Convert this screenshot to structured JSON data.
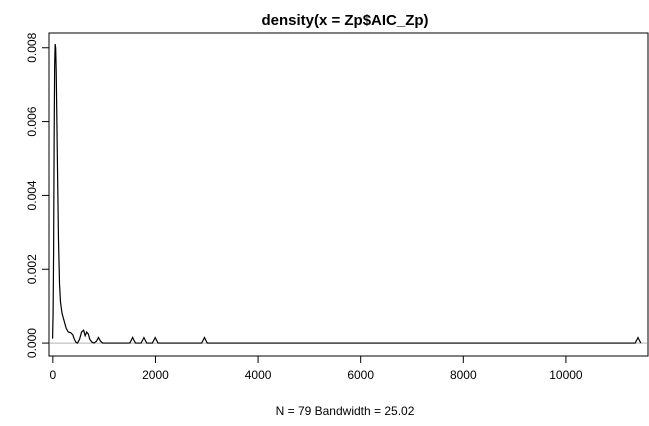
{
  "chart_data": {
    "type": "line",
    "title": "density(x = Zp$AIC_Zp)",
    "xlabel": "N = 79   Bandwidth = 25.02",
    "ylabel": "",
    "xlim": [
      -75,
      11600
    ],
    "ylim": [
      -0.00035,
      0.0084
    ],
    "x_ticks": [
      0,
      2000,
      4000,
      6000,
      8000,
      10000
    ],
    "x_tick_labels": [
      "0",
      "2000",
      "4000",
      "6000",
      "8000",
      "10000"
    ],
    "y_ticks": [
      0.0,
      0.002,
      0.004,
      0.006,
      0.008
    ],
    "y_tick_labels": [
      "0.000",
      "0.002",
      "0.004",
      "0.006",
      "0.008"
    ],
    "baseline": 0,
    "grid": false,
    "series": [
      {
        "points": [
          [
            -5,
            0.00012
          ],
          [
            5,
            0.0008
          ],
          [
            15,
            0.0025
          ],
          [
            25,
            0.0055
          ],
          [
            35,
            0.0075
          ],
          [
            45,
            0.0081
          ],
          [
            55,
            0.008
          ],
          [
            65,
            0.0074
          ],
          [
            75,
            0.0064
          ],
          [
            90,
            0.0048
          ],
          [
            110,
            0.0028
          ],
          [
            130,
            0.0016
          ],
          [
            150,
            0.0011
          ],
          [
            180,
            0.0008
          ],
          [
            220,
            0.0006
          ],
          [
            260,
            0.0004
          ],
          [
            300,
            0.0003
          ],
          [
            350,
            0.00028
          ],
          [
            390,
            0.00022
          ],
          [
            420,
            0.0001
          ],
          [
            450,
            2e-05
          ],
          [
            480,
            0.0
          ],
          [
            520,
            0.0001
          ],
          [
            560,
            0.0003
          ],
          [
            600,
            0.00035
          ],
          [
            630,
            0.0002
          ],
          [
            660,
            0.0003
          ],
          [
            690,
            0.00025
          ],
          [
            720,
            0.0001
          ],
          [
            760,
            3e-05
          ],
          [
            800,
            0.0
          ],
          [
            850,
            5e-05
          ],
          [
            890,
            0.00015
          ],
          [
            930,
            5e-05
          ],
          [
            970,
            0.0
          ],
          [
            1500,
            0.0
          ],
          [
            1530,
            8e-05
          ],
          [
            1555,
            0.00015
          ],
          [
            1580,
            8e-05
          ],
          [
            1610,
            0.0
          ],
          [
            1720,
            0.0
          ],
          [
            1750,
            8e-05
          ],
          [
            1775,
            0.00015
          ],
          [
            1800,
            8e-05
          ],
          [
            1830,
            0.0
          ],
          [
            1940,
            0.0
          ],
          [
            1970,
            8e-05
          ],
          [
            1995,
            0.00015
          ],
          [
            2020,
            8e-05
          ],
          [
            2050,
            0.0
          ],
          [
            2900,
            0.0
          ],
          [
            2930,
            8e-05
          ],
          [
            2955,
            0.00015
          ],
          [
            2980,
            8e-05
          ],
          [
            3010,
            0.0
          ],
          [
            11350,
            0.0
          ],
          [
            11380,
            8e-05
          ],
          [
            11405,
            0.00015
          ],
          [
            11430,
            8e-05
          ],
          [
            11460,
            0.0
          ]
        ]
      }
    ]
  }
}
